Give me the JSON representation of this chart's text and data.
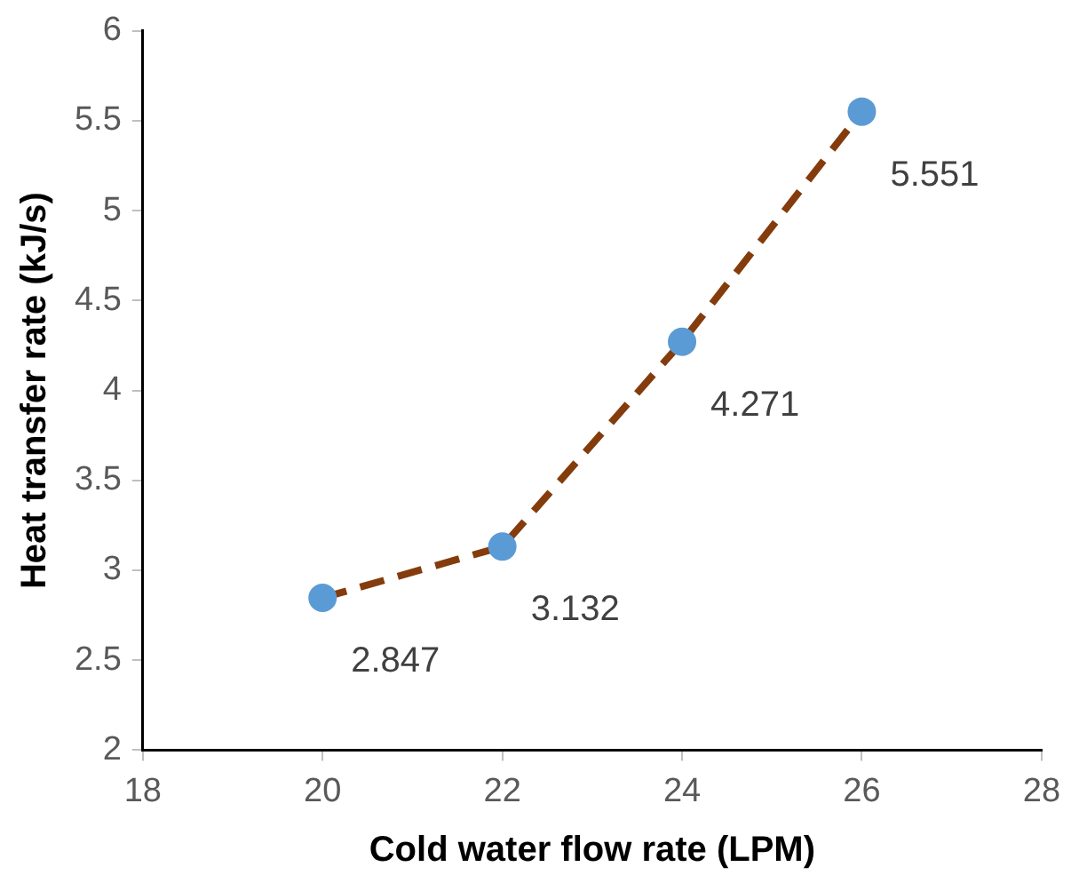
{
  "chart_data": {
    "type": "line",
    "xlabel": "Cold water flow rate (LPM)",
    "ylabel": "Heat transfer rate (kJ/s)",
    "x": [
      20,
      22,
      24,
      26
    ],
    "series": [
      {
        "color": "#843c0c",
        "colors": [
          "#5b9bd5",
          "#5b9bd5",
          "#5b9bd5",
          "#5b9bd5"
        ],
        "values": [
          2.847,
          3.132,
          4.271,
          5.551
        ]
      }
    ],
    "xlim": [
      18,
      28
    ],
    "xticks": [
      18,
      20,
      22,
      24,
      26,
      28
    ],
    "ylim": [
      2,
      6
    ],
    "yticks": [
      2,
      2.5,
      3,
      3.5,
      4,
      4.5,
      5,
      5.5,
      6
    ],
    "grid": false,
    "legend": false,
    "marker": "circle",
    "line_style": "dashed",
    "data_labels": true
  }
}
